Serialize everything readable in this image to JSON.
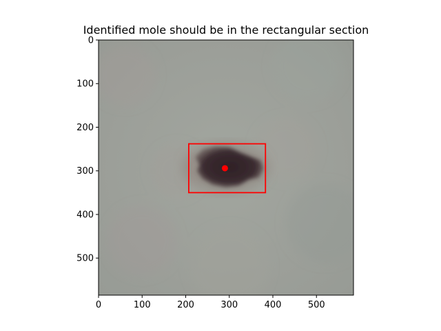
{
  "chart_data": {
    "type": "image",
    "title": "Identified mole should be in the rectangular section",
    "xlabel": "",
    "ylabel": "",
    "image_extent": {
      "width": 585,
      "height": 585
    },
    "xlim": [
      0,
      585
    ],
    "ylim": [
      585,
      0
    ],
    "y_inverted": true,
    "x_ticks": [
      0,
      100,
      200,
      300,
      400,
      500
    ],
    "y_ticks": [
      0,
      100,
      200,
      300,
      400,
      500
    ],
    "grid": false,
    "bounding_box": {
      "x_min": 207,
      "x_max": 383,
      "y_min": 238,
      "y_max": 350,
      "color": "#ff0000"
    },
    "center_point": {
      "x": 290,
      "y": 294,
      "color": "#ff0000"
    },
    "colors": {
      "skin": "#9ea39d",
      "mole": "#3a2a2e",
      "marker": "#ff0000"
    }
  }
}
